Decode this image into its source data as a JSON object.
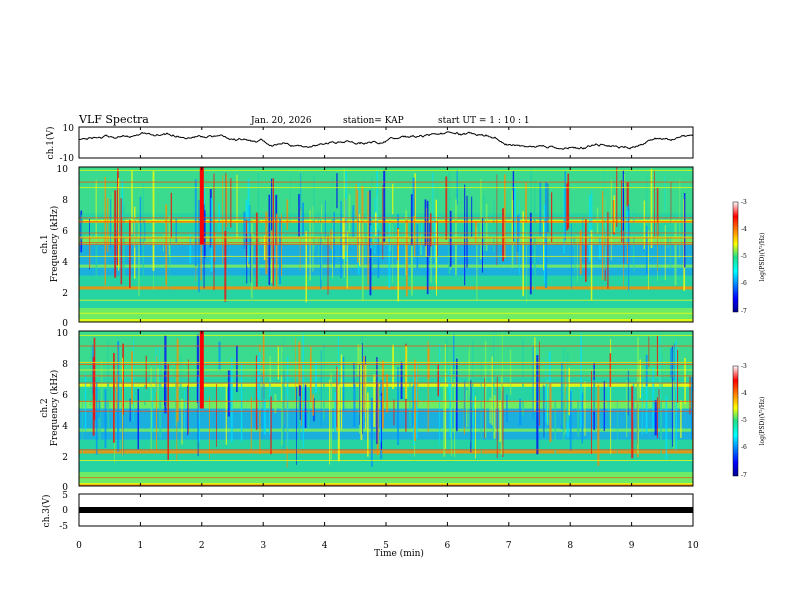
{
  "header": {
    "title": "VLF Spectra",
    "date": "Jan. 20, 2026",
    "station": "station= KAP",
    "start": "start  UT =   1 : 10 : 1"
  },
  "chart_data": [
    {
      "type": "line",
      "panel": "ch1-voltage",
      "ylabel": "ch.1(V)",
      "ylim": [
        -10,
        10
      ],
      "yticks": [
        "10",
        "-10"
      ],
      "xlim": [
        0,
        10
      ]
    },
    {
      "type": "heatmap",
      "panel": "ch1-spectrogram",
      "ylabel_top": "ch.1",
      "ylabel": "Frequency (kHz)",
      "ylim": [
        0,
        10
      ],
      "yticks": [
        "0",
        "2",
        "4",
        "6",
        "8",
        "10"
      ],
      "xlim": [
        0,
        10
      ],
      "colorbar": {
        "label": "log(PSD)(V²/Hz)",
        "min": -7,
        "max": -3,
        "ticks": [
          "-3",
          "-4",
          "-5",
          "-6",
          "-7"
        ]
      }
    },
    {
      "type": "heatmap",
      "panel": "ch2-spectrogram",
      "ylabel_top": "ch.2",
      "ylabel": "Frequency (kHz)",
      "ylim": [
        0,
        10
      ],
      "yticks": [
        "0",
        "2",
        "4",
        "6",
        "8",
        "10"
      ],
      "xlim": [
        0,
        10
      ],
      "colorbar": {
        "label": "log(PSD)(V²/Hz)",
        "min": -7,
        "max": -3,
        "ticks": [
          "-3",
          "-4",
          "-5",
          "-6",
          "-7"
        ]
      }
    },
    {
      "type": "line",
      "panel": "ch3-voltage",
      "ylabel": "ch.3(V)",
      "ylim": [
        -5,
        5
      ],
      "yticks": [
        "5",
        "0",
        "-5"
      ],
      "xlim": [
        0,
        10
      ]
    }
  ],
  "xaxis": {
    "label": "Time (min)",
    "ticks": [
      "0",
      "1",
      "2",
      "3",
      "4",
      "5",
      "6",
      "7",
      "8",
      "9",
      "10"
    ]
  }
}
